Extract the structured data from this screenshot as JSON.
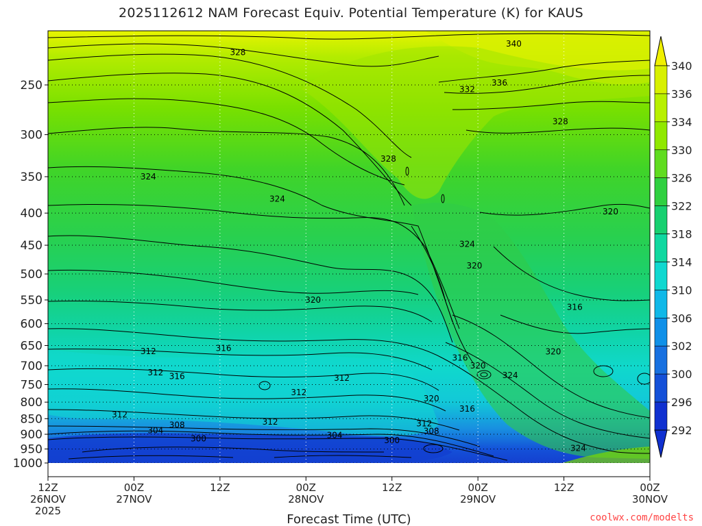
{
  "chart_data": {
    "type": "heatmap",
    "title": "2025112612 NAM Forecast Equiv. Potential Temperature (K) for KAUS",
    "xlabel": "Forecast Time (UTC)",
    "ylabel": "",
    "x_ticks": [
      {
        "hour": 0,
        "line1": "12Z",
        "line2": "26NOV",
        "line3": "2025"
      },
      {
        "hour": 12,
        "line1": "00Z",
        "line2": "27NOV",
        "line3": ""
      },
      {
        "hour": 24,
        "line1": "12Z",
        "line2": "",
        "line3": ""
      },
      {
        "hour": 36,
        "line1": "00Z",
        "line2": "28NOV",
        "line3": ""
      },
      {
        "hour": 48,
        "line1": "12Z",
        "line2": "",
        "line3": ""
      },
      {
        "hour": 60,
        "line1": "00Z",
        "line2": "29NOV",
        "line3": ""
      },
      {
        "hour": 72,
        "line1": "12Z",
        "line2": "",
        "line3": ""
      },
      {
        "hour": 84,
        "line1": "00Z",
        "line2": "30NOV",
        "line3": ""
      }
    ],
    "xlim": [
      0,
      84
    ],
    "y_ticks": [
      250,
      300,
      350,
      400,
      450,
      500,
      550,
      600,
      650,
      700,
      750,
      800,
      850,
      900,
      950,
      1000
    ],
    "ylim": [
      1000,
      200
    ],
    "y_scale": "log",
    "grid": "dotted",
    "colorbar": {
      "labels": [
        340,
        336,
        334,
        330,
        326,
        322,
        318,
        314,
        310,
        306,
        302,
        300,
        296,
        292
      ],
      "colors": [
        "#f0f000",
        "#d8f000",
        "#b8f000",
        "#90e800",
        "#60dc20",
        "#30d040",
        "#18d070",
        "#10d8a0",
        "#10d8d0",
        "#10b8e8",
        "#1090e8",
        "#1870e0",
        "#1450d8",
        "#1030d0"
      ]
    },
    "contour_labels": [
      {
        "text": "340",
        "t": 65.0,
        "p": 215
      },
      {
        "text": "336",
        "t": 63.0,
        "p": 248
      },
      {
        "text": "332",
        "t": 58.5,
        "p": 254
      },
      {
        "text": "328",
        "t": 26.5,
        "p": 222
      },
      {
        "text": "328",
        "t": 71.5,
        "p": 286
      },
      {
        "text": "328",
        "t": 47.5,
        "p": 328
      },
      {
        "text": "324",
        "t": 14.0,
        "p": 350
      },
      {
        "text": "324",
        "t": 32.0,
        "p": 380
      },
      {
        "text": "324",
        "t": 58.5,
        "p": 448
      },
      {
        "text": "320",
        "t": 78.5,
        "p": 398
      },
      {
        "text": "320",
        "t": 59.5,
        "p": 485
      },
      {
        "text": "320",
        "t": 37.0,
        "p": 550
      },
      {
        "text": "316",
        "t": 73.5,
        "p": 565
      },
      {
        "text": "316",
        "t": 24.5,
        "p": 657
      },
      {
        "text": "312",
        "t": 14.0,
        "p": 664
      },
      {
        "text": "316",
        "t": 57.5,
        "p": 680
      },
      {
        "text": "320",
        "t": 60.0,
        "p": 700
      },
      {
        "text": "320",
        "t": 70.5,
        "p": 665
      },
      {
        "text": "312",
        "t": 15.0,
        "p": 718
      },
      {
        "text": "316",
        "t": 18.0,
        "p": 728
      },
      {
        "text": "324",
        "t": 64.5,
        "p": 725
      },
      {
        "text": "312",
        "t": 41.0,
        "p": 732
      },
      {
        "text": "312",
        "t": 35.0,
        "p": 772
      },
      {
        "text": "320",
        "t": 53.5,
        "p": 790
      },
      {
        "text": "316",
        "t": 58.5,
        "p": 820
      },
      {
        "text": "312",
        "t": 10.0,
        "p": 838
      },
      {
        "text": "312",
        "t": 31.0,
        "p": 860
      },
      {
        "text": "312",
        "t": 52.5,
        "p": 865
      },
      {
        "text": "308",
        "t": 18.0,
        "p": 870
      },
      {
        "text": "304",
        "t": 15.0,
        "p": 888
      },
      {
        "text": "308",
        "t": 53.5,
        "p": 890
      },
      {
        "text": "300",
        "t": 21.0,
        "p": 915
      },
      {
        "text": "304",
        "t": 40.0,
        "p": 903
      },
      {
        "text": "300",
        "t": 48.0,
        "p": 920
      },
      {
        "text": "324",
        "t": 74.0,
        "p": 948
      }
    ]
  },
  "credit": "coolwx.com/modelts"
}
